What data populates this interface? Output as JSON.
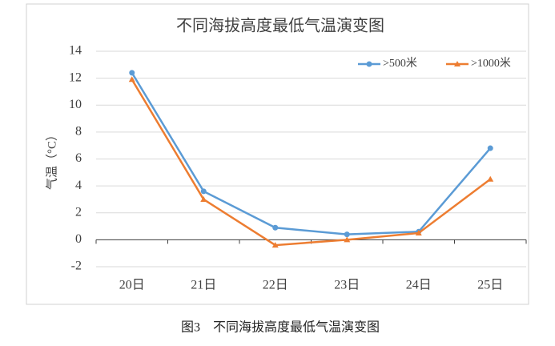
{
  "chart_data": {
    "type": "line",
    "title": "不同海拔高度最低气温演变图",
    "y_label": "气温（°C）",
    "categories": [
      "20日",
      "21日",
      "22日",
      "23日",
      "24日",
      "25日"
    ],
    "series": [
      {
        "name": ">500米",
        "color": "#5b9bd5",
        "marker": "circle",
        "values": [
          12.4,
          3.6,
          0.9,
          0.4,
          0.6,
          6.8
        ]
      },
      {
        "name": ">1000米",
        "color": "#ed7d31",
        "marker": "triangle",
        "values": [
          11.9,
          3.0,
          -0.4,
          0.0,
          0.5,
          4.5
        ]
      }
    ],
    "ylim": [
      -2,
      14
    ],
    "yticks": [
      -2,
      0,
      2,
      4,
      6,
      8,
      10,
      12,
      14
    ],
    "grid": true,
    "legend": "top-right"
  },
  "caption": "图3　不同海拔高度最低气温演变图"
}
